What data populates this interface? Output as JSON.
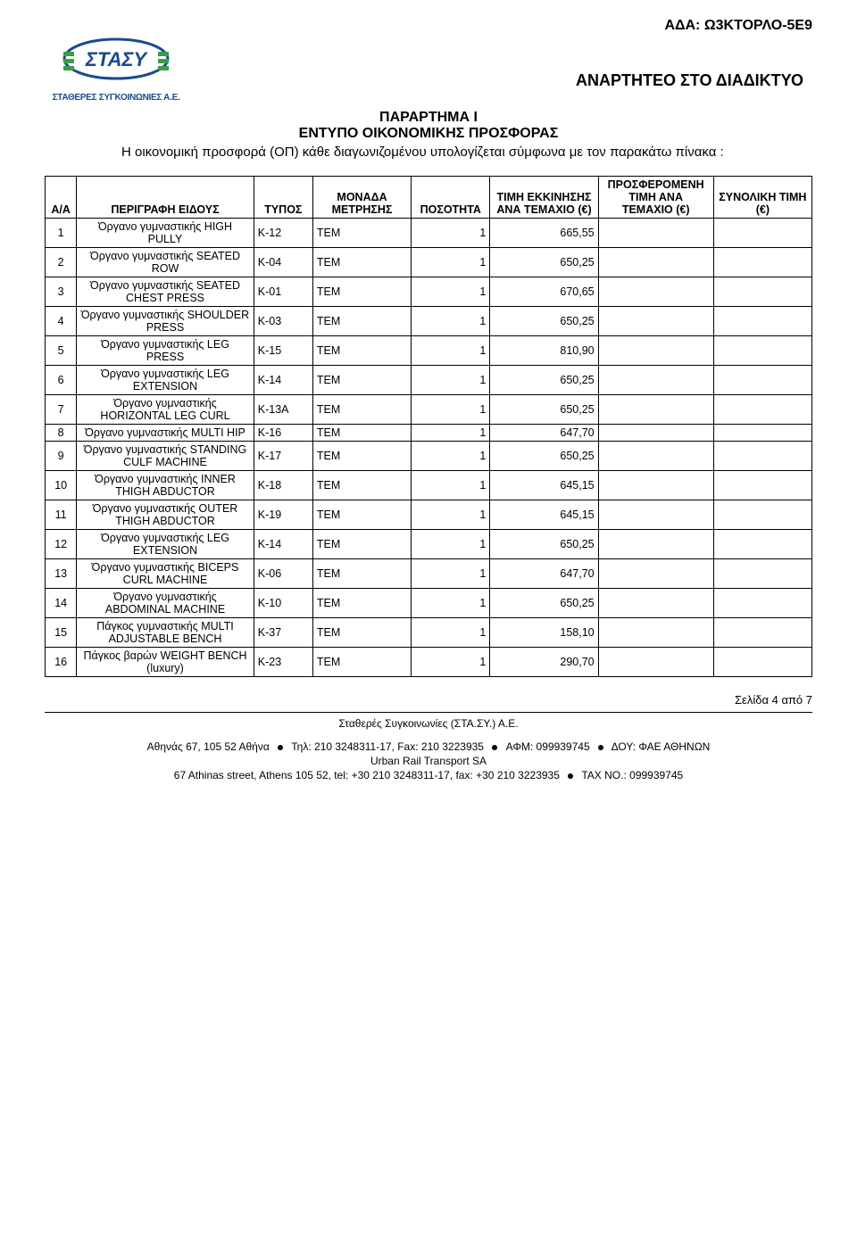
{
  "ada": "ΑΔΑ: Ω3ΚΤΟΡΛΟ-5Ε9",
  "logo_text": "ΣΤΑΣΥ",
  "logo_sub": "ΣΤΑΘΕΡΕΣ ΣΥΓΚΟΙΝΩΝΙΕΣ Α.Ε.",
  "web_title": "ΑΝΑΡΤΗΤΕΟ ΣΤΟ ΔΙΑΔΙΚΤΥΟ",
  "annex_title": "ΠΑΡΑΡΤΗΜΑ Ι",
  "annex_sub": "ΕΝΤΥΠΟ ΟΙΚΟΝΟΜΙΚΗΣ ΠΡΟΣΦΟΡΑΣ",
  "intro": "Η οικονομική προσφορά (ΟΠ) κάθε διαγωνιζομένου υπολογίζεται σύμφωνα με τον παρακάτω πίνακα :",
  "headers": {
    "aa": "Α/Α",
    "desc": "ΠΕΡΙΓΡΑΦΗ ΕΙΔΟΥΣ",
    "type": "ΤΥΠΟΣ",
    "unit": "ΜΟΝΑΔΑ ΜΕΤΡΗΣΗΣ",
    "qty": "ΠΟΣΟΤΗΤΑ",
    "start": "ΤΙΜΗ ΕΚΚΙΝΗΣΗΣ ΑΝΑ ΤΕΜΑΧΙΟ (€)",
    "offer": "ΠΡΟΣΦΕΡΟΜΕΝΗ ΤΙΜΗ ΑΝΑ ΤΕΜΑΧΙΟ (€)",
    "total": "ΣΥΝΟΛΙΚΗ ΤΙΜΗ (€)"
  },
  "rows": [
    {
      "aa": "1",
      "desc": "Όργανο γυμναστικής HIGH PULLY",
      "type": "K-12",
      "unit": "ΤΕΜ",
      "qty": "1",
      "start": "665,55"
    },
    {
      "aa": "2",
      "desc": "Όργανο γυμναστικής SEATED ROW",
      "type": "K-04",
      "unit": "ΤΕΜ",
      "qty": "1",
      "start": "650,25"
    },
    {
      "aa": "3",
      "desc": "Όργανο γυμναστικής SEATED CHEST PRESS",
      "type": "K-01",
      "unit": "ΤΕΜ",
      "qty": "1",
      "start": "670,65"
    },
    {
      "aa": "4",
      "desc": "Όργανο γυμναστικής SHOULDER PRESS",
      "type": "K-03",
      "unit": "ΤΕΜ",
      "qty": "1",
      "start": "650,25"
    },
    {
      "aa": "5",
      "desc": "Όργανο γυμναστικής LEG PRESS",
      "type": "K-15",
      "unit": "ΤΕΜ",
      "qty": "1",
      "start": "810,90"
    },
    {
      "aa": "6",
      "desc": "Όργανο γυμναστικής LEG EXTENSION",
      "type": "K-14",
      "unit": "ΤΕΜ",
      "qty": "1",
      "start": "650,25"
    },
    {
      "aa": "7",
      "desc": "Όργανο γυμναστικής HORIZONTAL LEG CURL",
      "type": "K-13A",
      "unit": "ΤΕΜ",
      "qty": "1",
      "start": "650,25"
    },
    {
      "aa": "8",
      "desc": "Όργανο γυμναστικής MULTI HIP",
      "type": "K-16",
      "unit": "ΤΕΜ",
      "qty": "1",
      "start": "647,70"
    },
    {
      "aa": "9",
      "desc": "Όργανο γυμναστικής STANDING CULF MACHINE",
      "type": "K-17",
      "unit": "ΤΕΜ",
      "qty": "1",
      "start": "650,25"
    },
    {
      "aa": "10",
      "desc": "Όργανο γυμναστικής INNER THIGH ABDUCTOR",
      "type": "K-18",
      "unit": "ΤΕΜ",
      "qty": "1",
      "start": "645,15"
    },
    {
      "aa": "11",
      "desc": "Όργανο γυμναστικής OUTER THIGH ABDUCTOR",
      "type": "K-19",
      "unit": "ΤΕΜ",
      "qty": "1",
      "start": "645,15"
    },
    {
      "aa": "12",
      "desc": "Όργανο γυμναστικής LEG EXTENSION",
      "type": "K-14",
      "unit": "ΤΕΜ",
      "qty": "1",
      "start": "650,25"
    },
    {
      "aa": "13",
      "desc": "Όργανο γυμναστικής BICEPS CURL MACHINE",
      "type": "K-06",
      "unit": "ΤΕΜ",
      "qty": "1",
      "start": "647,70"
    },
    {
      "aa": "14",
      "desc": "Όργανο γυμναστικής ABDOMINAL MACHINE",
      "type": "K-10",
      "unit": "ΤΕΜ",
      "qty": "1",
      "start": "650,25"
    },
    {
      "aa": "15",
      "desc": "Πάγκος γυμναστικής MULTI ADJUSTABLE BENCH",
      "type": "K-37",
      "unit": "ΤΕΜ",
      "qty": "1",
      "start": "158,10"
    },
    {
      "aa": "16",
      "desc": "Πάγκος βαρών WEIGHT BENCH (luxury)",
      "type": "K-23",
      "unit": "ΤΕΜ",
      "qty": "1",
      "start": "290,70"
    }
  ],
  "page_num": "Σελίδα 4 από 7",
  "footer": {
    "co1": "Σταθερές Συγκοινωνίες (ΣΤΑ.ΣΥ.) Α.Ε.",
    "addr1a": "Αθηνάς 67, 105 52 Αθήνα",
    "addr1b": "Τηλ: 210 3248311-17, Fax: 210 3223935",
    "addr1c": "ΑΦΜ: 099939745",
    "addr1d": "ΔΟΥ: ΦΑΕ ΑΘΗΝΩΝ",
    "co2": "Urban Rail Transport SA",
    "addr2a": "67 Athinas street, Athens 105 52, tel: +30 210 3248311-17, fax: +30 210 3223935",
    "addr2b": "TAX NO.:  099939745"
  },
  "colors": {
    "logo_blue": "#1a4a8c",
    "logo_green": "#3a9b4a",
    "text": "#000000",
    "bg": "#ffffff"
  }
}
